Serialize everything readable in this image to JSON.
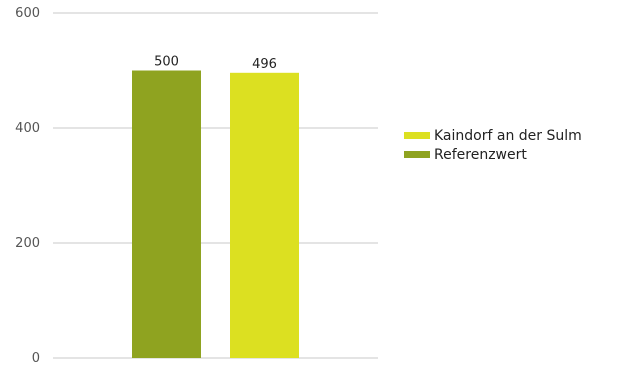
{
  "chart_data": {
    "type": "bar",
    "categories": [
      ""
    ],
    "series": [
      {
        "name": "Referenzwert",
        "values": [
          500
        ],
        "color": "#8fa320"
      },
      {
        "name": "Kaindorf an der Sulm",
        "values": [
          496
        ],
        "color": "#dce021"
      }
    ],
    "data_labels": [
      "500",
      "496"
    ],
    "ylim": [
      0,
      600
    ],
    "yticks": [
      0,
      200,
      400,
      600
    ],
    "grid": true,
    "legend": {
      "placement": "right",
      "order": [
        "Kaindorf an der Sulm",
        "Referenzwert"
      ]
    },
    "title": "",
    "xlabel": "",
    "ylabel": ""
  }
}
